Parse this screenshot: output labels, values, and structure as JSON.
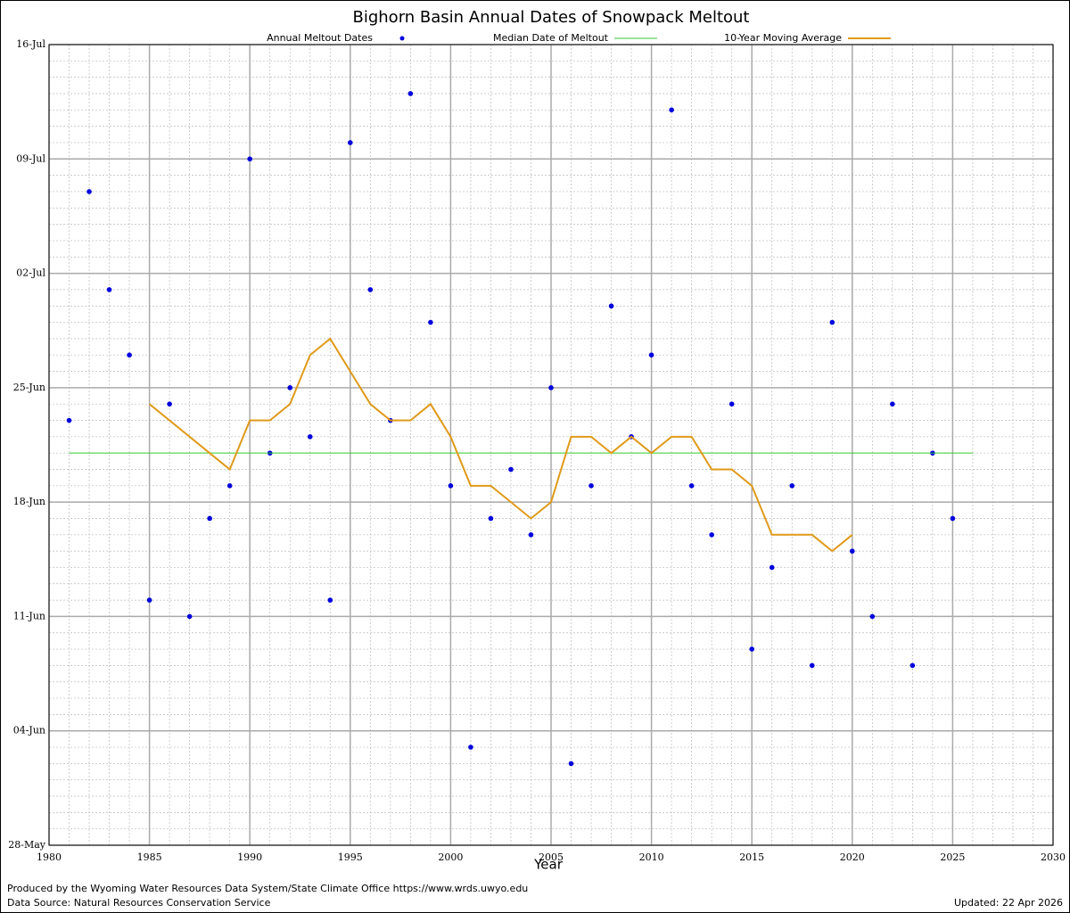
{
  "chart_data": {
    "type": "scatter-line",
    "title": "Bighorn Basin Annual Dates of Snowpack Meltout",
    "x_label": "Year",
    "footer_left": [
      "Produced by the Wyoming Water Resources Data System/State Climate Office https://www.wrds.uwyo.edu",
      "Data Source: Natural Resources Conservation Service"
    ],
    "footer_right": "Updated: 22 Apr 2026",
    "xlim": [
      1980,
      2030
    ],
    "xticks": [
      1980,
      1985,
      1990,
      1995,
      2000,
      2005,
      2010,
      2015,
      2020,
      2025,
      2030
    ],
    "ylim": [
      148,
      197
    ],
    "yticks": [
      {
        "value": 148,
        "label": "28-May"
      },
      {
        "value": 155,
        "label": "04-Jun"
      },
      {
        "value": 162,
        "label": "11-Jun"
      },
      {
        "value": 169,
        "label": "18-Jun"
      },
      {
        "value": 176,
        "label": "25-Jun"
      },
      {
        "value": 183,
        "label": "02-Jul"
      },
      {
        "value": 190,
        "label": "09-Jul"
      },
      {
        "value": 197,
        "label": "16-Jul"
      }
    ],
    "grid": true,
    "minor_grid": true,
    "series": [
      {
        "name": "Annual Meltout Dates",
        "kind": "points",
        "color": "#0000dd",
        "x": [
          1981,
          1982,
          1983,
          1984,
          1985,
          1986,
          1987,
          1988,
          1989,
          1990,
          1991,
          1992,
          1993,
          1994,
          1995,
          1996,
          1997,
          1998,
          1999,
          2000,
          2001,
          2002,
          2003,
          2004,
          2005,
          2006,
          2007,
          2008,
          2009,
          2010,
          2011,
          2012,
          2013,
          2014,
          2015,
          2016,
          2017,
          2018,
          2019,
          2020,
          2021,
          2022,
          2023,
          2024,
          2025
        ],
        "values": [
          174,
          188,
          182,
          178,
          163,
          175,
          162,
          168,
          170,
          190,
          172,
          176,
          173,
          163,
          191,
          182,
          174,
          194,
          180,
          170,
          154,
          168,
          171,
          167,
          176,
          153,
          170,
          181,
          173,
          178,
          193,
          170,
          167,
          175,
          160,
          165,
          170,
          159,
          180,
          166,
          162,
          175,
          159,
          172,
          168
        ]
      },
      {
        "name": "Median Date of Meltout",
        "kind": "line",
        "color": "#33cc33",
        "x": [
          1981,
          2026
        ],
        "values": [
          172,
          172
        ]
      },
      {
        "name": "10-Year Moving Average",
        "kind": "line",
        "color": "#e09a1a",
        "x": [
          1985,
          1986,
          1987,
          1988,
          1989,
          1990,
          1991,
          1992,
          1993,
          1994,
          1995,
          1996,
          1997,
          1998,
          1999,
          2000,
          2001,
          2002,
          2003,
          2004,
          2005,
          2006,
          2007,
          2008,
          2009,
          2010,
          2011,
          2012,
          2013,
          2014,
          2015,
          2016,
          2017,
          2018,
          2019,
          2020
        ],
        "values": [
          175,
          174,
          173,
          172,
          171,
          174,
          174,
          175,
          178,
          179,
          177,
          175,
          174,
          174,
          175,
          173,
          170,
          170,
          169,
          168,
          169,
          173,
          173,
          172,
          173,
          172,
          173,
          173,
          171,
          171,
          170,
          167,
          167,
          167,
          166,
          167
        ]
      }
    ]
  }
}
